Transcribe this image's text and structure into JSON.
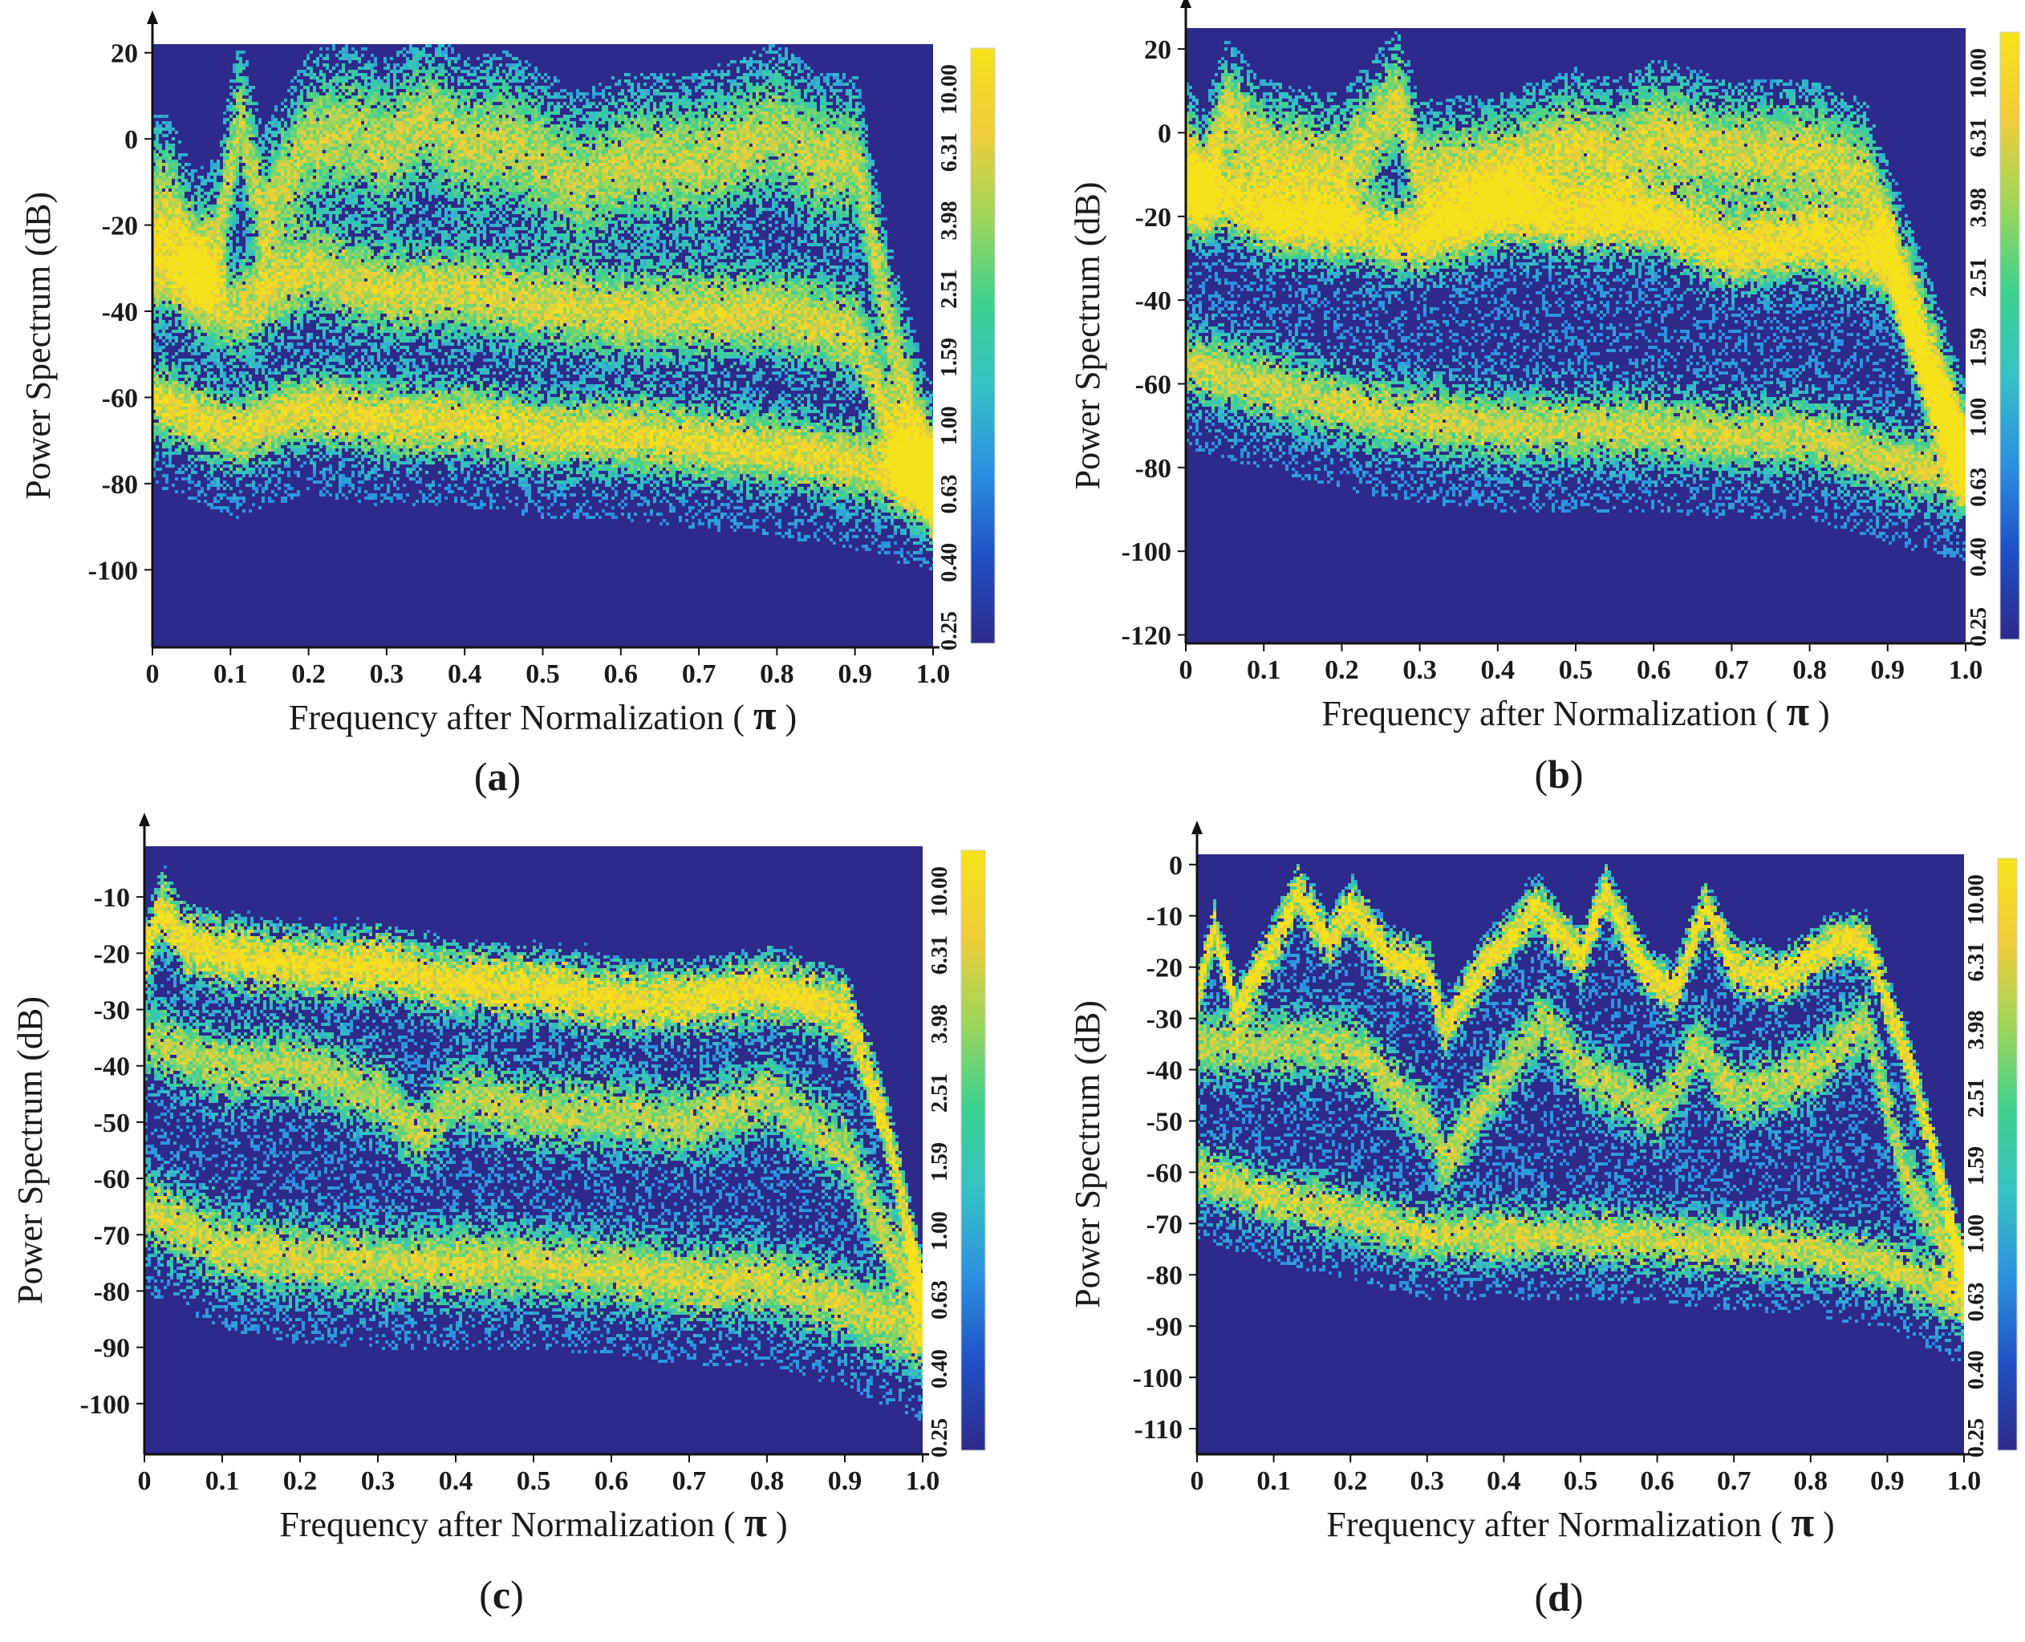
{
  "figure": {
    "colors": {
      "background": "#2e2a8a",
      "axis": "#111111",
      "colormap": [
        "#2e2a8a",
        "#1f4fc4",
        "#2b8fe0",
        "#35c0c6",
        "#3dd18f",
        "#9ed65a",
        "#f0cc3a",
        "#f6e21a"
      ]
    },
    "colorbar_labels": [
      "10.00",
      "6.31",
      "3.98",
      "2.51",
      "1.59",
      "1.00",
      "0.63",
      "0.40",
      "0.25"
    ]
  },
  "chart_data": [
    {
      "id": "a",
      "type": "heatmap",
      "panel_label": "a",
      "xlabel": "Frequency after Normalization (",
      "xlabel_symbol": "π",
      "xlabel_close": ")",
      "ylabel": "Power Spectrum (dB)",
      "xlim": [
        0,
        1.0
      ],
      "ylim": [
        -118,
        22
      ],
      "x_ticks": [
        "0",
        "0.1",
        "0.2",
        "0.3",
        "0.4",
        "0.5",
        "0.6",
        "0.7",
        "0.8",
        "0.9",
        "1.0"
      ],
      "y_ticks": [
        20,
        0,
        -20,
        -40,
        -60,
        -80,
        -100
      ],
      "bands": [
        {
          "name": "upper",
          "nodes": [
            [
              0,
              -15
            ],
            [
              0.02,
              -15
            ],
            [
              0.05,
              -28
            ],
            [
              0.08,
              -25
            ],
            [
              0.11,
              5
            ],
            [
              0.14,
              -18
            ],
            [
              0.2,
              0
            ],
            [
              0.25,
              2
            ],
            [
              0.3,
              -2
            ],
            [
              0.35,
              5
            ],
            [
              0.4,
              -2
            ],
            [
              0.45,
              0
            ],
            [
              0.5,
              -5
            ],
            [
              0.55,
              -10
            ],
            [
              0.6,
              -5
            ],
            [
              0.7,
              -5
            ],
            [
              0.8,
              2
            ],
            [
              0.85,
              -5
            ],
            [
              0.9,
              -5
            ],
            [
              0.95,
              -50
            ],
            [
              1.0,
              -80
            ]
          ],
          "spread": 14,
          "intensity": 0.55
        },
        {
          "name": "middle",
          "nodes": [
            [
              0,
              -30
            ],
            [
              0.05,
              -32
            ],
            [
              0.1,
              -40
            ],
            [
              0.2,
              -30
            ],
            [
              0.3,
              -35
            ],
            [
              0.4,
              -35
            ],
            [
              0.5,
              -38
            ],
            [
              0.6,
              -40
            ],
            [
              0.7,
              -40
            ],
            [
              0.8,
              -40
            ],
            [
              0.9,
              -45
            ],
            [
              0.95,
              -70
            ],
            [
              1.0,
              -80
            ]
          ],
          "spread": 10,
          "intensity": 0.62
        },
        {
          "name": "lower",
          "nodes": [
            [
              0,
              -60
            ],
            [
              0.1,
              -68
            ],
            [
              0.2,
              -62
            ],
            [
              0.3,
              -65
            ],
            [
              0.4,
              -65
            ],
            [
              0.5,
              -68
            ],
            [
              0.6,
              -68
            ],
            [
              0.7,
              -70
            ],
            [
              0.8,
              -72
            ],
            [
              0.9,
              -75
            ],
            [
              0.95,
              -78
            ],
            [
              1.0,
              -80
            ]
          ],
          "spread": 8,
          "intensity": 0.7
        }
      ]
    },
    {
      "id": "b",
      "type": "heatmap",
      "panel_label": "b",
      "xlabel": "Frequency after Normalization (",
      "xlabel_symbol": "π",
      "xlabel_close": ")",
      "ylabel": "Power Spectrum (dB)",
      "xlim": [
        0,
        1.0
      ],
      "ylim": [
        -122,
        25
      ],
      "x_ticks": [
        "0",
        "0.1",
        "0.2",
        "0.3",
        "0.4",
        "0.5",
        "0.6",
        "0.7",
        "0.8",
        "0.9",
        "1.0"
      ],
      "y_ticks": [
        20,
        0,
        -20,
        -40,
        -60,
        -80,
        -100,
        -120
      ],
      "bands": [
        {
          "name": "upper",
          "nodes": [
            [
              0,
              -5
            ],
            [
              0.02,
              -12
            ],
            [
              0.05,
              5
            ],
            [
              0.1,
              -5
            ],
            [
              0.2,
              -8
            ],
            [
              0.27,
              8
            ],
            [
              0.3,
              -10
            ],
            [
              0.4,
              -8
            ],
            [
              0.5,
              -2
            ],
            [
              0.55,
              -5
            ],
            [
              0.6,
              0
            ],
            [
              0.7,
              -5
            ],
            [
              0.8,
              -5
            ],
            [
              0.87,
              -10
            ],
            [
              0.93,
              -40
            ],
            [
              1.0,
              -78
            ]
          ],
          "spread": 12,
          "intensity": 0.62
        },
        {
          "name": "middle",
          "nodes": [
            [
              0,
              -15
            ],
            [
              0.05,
              -15
            ],
            [
              0.1,
              -20
            ],
            [
              0.2,
              -22
            ],
            [
              0.3,
              -25
            ],
            [
              0.4,
              -18
            ],
            [
              0.5,
              -20
            ],
            [
              0.6,
              -20
            ],
            [
              0.7,
              -28
            ],
            [
              0.8,
              -25
            ],
            [
              0.9,
              -30
            ],
            [
              0.95,
              -60
            ],
            [
              1.0,
              -78
            ]
          ],
          "spread": 8,
          "intensity": 0.8
        },
        {
          "name": "lower",
          "nodes": [
            [
              0,
              -55
            ],
            [
              0.1,
              -60
            ],
            [
              0.2,
              -65
            ],
            [
              0.3,
              -68
            ],
            [
              0.4,
              -70
            ],
            [
              0.5,
              -70
            ],
            [
              0.6,
              -70
            ],
            [
              0.7,
              -72
            ],
            [
              0.8,
              -72
            ],
            [
              0.9,
              -78
            ],
            [
              1.0,
              -82
            ]
          ],
          "spread": 8,
          "intensity": 0.6
        }
      ]
    },
    {
      "id": "c",
      "type": "heatmap",
      "panel_label": "c",
      "xlabel": "Frequency after Normalization (",
      "xlabel_symbol": "π",
      "xlabel_close": ")",
      "ylabel": "Power Spectrum (dB)",
      "xlim": [
        0,
        1.0
      ],
      "ylim": [
        -109,
        -1
      ],
      "x_ticks": [
        "0",
        "0.1",
        "0.2",
        "0.3",
        "0.4",
        "0.5",
        "0.6",
        "0.7",
        "0.8",
        "0.9",
        "1.0"
      ],
      "y_ticks": [
        -10,
        -20,
        -30,
        -40,
        -50,
        -60,
        -70,
        -80,
        -90,
        -100
      ],
      "bands": [
        {
          "name": "upper",
          "nodes": [
            [
              0,
              -20
            ],
            [
              0.02,
              -12
            ],
            [
              0.05,
              -18
            ],
            [
              0.1,
              -20
            ],
            [
              0.2,
              -22
            ],
            [
              0.3,
              -22
            ],
            [
              0.4,
              -25
            ],
            [
              0.5,
              -26
            ],
            [
              0.6,
              -28
            ],
            [
              0.7,
              -28
            ],
            [
              0.8,
              -26
            ],
            [
              0.9,
              -30
            ],
            [
              0.95,
              -50
            ],
            [
              1.0,
              -82
            ]
          ],
          "spread": 5,
          "intensity": 0.82
        },
        {
          "name": "middle",
          "nodes": [
            [
              0,
              -35
            ],
            [
              0.1,
              -40
            ],
            [
              0.2,
              -40
            ],
            [
              0.3,
              -45
            ],
            [
              0.35,
              -52
            ],
            [
              0.4,
              -45
            ],
            [
              0.5,
              -48
            ],
            [
              0.6,
              -48
            ],
            [
              0.7,
              -50
            ],
            [
              0.8,
              -45
            ],
            [
              0.9,
              -55
            ],
            [
              0.95,
              -70
            ],
            [
              1.0,
              -82
            ]
          ],
          "spread": 6,
          "intensity": 0.55
        },
        {
          "name": "lower",
          "nodes": [
            [
              0,
              -65
            ],
            [
              0.1,
              -72
            ],
            [
              0.2,
              -74
            ],
            [
              0.3,
              -75
            ],
            [
              0.4,
              -75
            ],
            [
              0.5,
              -75
            ],
            [
              0.6,
              -76
            ],
            [
              0.7,
              -78
            ],
            [
              0.8,
              -78
            ],
            [
              0.9,
              -82
            ],
            [
              1.0,
              -88
            ]
          ],
          "spread": 6,
          "intensity": 0.62
        }
      ]
    },
    {
      "id": "d",
      "type": "heatmap",
      "panel_label": "d",
      "xlabel": "Frequency after Normalization (",
      "xlabel_symbol": "π",
      "xlabel_close": ")",
      "ylabel": "Power Spectrum (dB)",
      "xlim": [
        0,
        1.0
      ],
      "ylim": [
        -115,
        2
      ],
      "x_ticks": [
        "0",
        "0.1",
        "0.2",
        "0.3",
        "0.4",
        "0.5",
        "0.6",
        "0.7",
        "0.8",
        "0.9",
        "1.0"
      ],
      "y_ticks": [
        0,
        -10,
        -20,
        -30,
        -40,
        -50,
        -60,
        -70,
        -80,
        -90,
        -100,
        -110
      ],
      "bands": [
        {
          "name": "upper",
          "nodes": [
            [
              0,
              -25
            ],
            [
              0.02,
              -12
            ],
            [
              0.05,
              -28
            ],
            [
              0.1,
              -15
            ],
            [
              0.13,
              -5
            ],
            [
              0.17,
              -15
            ],
            [
              0.2,
              -8
            ],
            [
              0.25,
              -18
            ],
            [
              0.3,
              -20
            ],
            [
              0.32,
              -32
            ],
            [
              0.37,
              -20
            ],
            [
              0.44,
              -8
            ],
            [
              0.5,
              -18
            ],
            [
              0.53,
              -5
            ],
            [
              0.58,
              -20
            ],
            [
              0.62,
              -25
            ],
            [
              0.66,
              -8
            ],
            [
              0.7,
              -20
            ],
            [
              0.76,
              -22
            ],
            [
              0.83,
              -15
            ],
            [
              0.87,
              -15
            ],
            [
              0.93,
              -40
            ],
            [
              1.0,
              -80
            ]
          ],
          "spread": 4,
          "intensity": 0.85
        },
        {
          "name": "middle",
          "nodes": [
            [
              0,
              -35
            ],
            [
              0.1,
              -35
            ],
            [
              0.2,
              -35
            ],
            [
              0.3,
              -50
            ],
            [
              0.32,
              -58
            ],
            [
              0.4,
              -40
            ],
            [
              0.45,
              -30
            ],
            [
              0.5,
              -40
            ],
            [
              0.6,
              -48
            ],
            [
              0.65,
              -35
            ],
            [
              0.7,
              -45
            ],
            [
              0.8,
              -40
            ],
            [
              0.87,
              -30
            ],
            [
              0.92,
              -60
            ],
            [
              1.0,
              -80
            ]
          ],
          "spread": 6,
          "intensity": 0.55
        },
        {
          "name": "lower",
          "nodes": [
            [
              0,
              -60
            ],
            [
              0.1,
              -65
            ],
            [
              0.2,
              -68
            ],
            [
              0.3,
              -72
            ],
            [
              0.4,
              -72
            ],
            [
              0.5,
              -72
            ],
            [
              0.6,
              -73
            ],
            [
              0.7,
              -74
            ],
            [
              0.8,
              -75
            ],
            [
              0.9,
              -78
            ],
            [
              1.0,
              -85
            ]
          ],
          "spread": 5,
          "intensity": 0.62
        }
      ]
    }
  ]
}
